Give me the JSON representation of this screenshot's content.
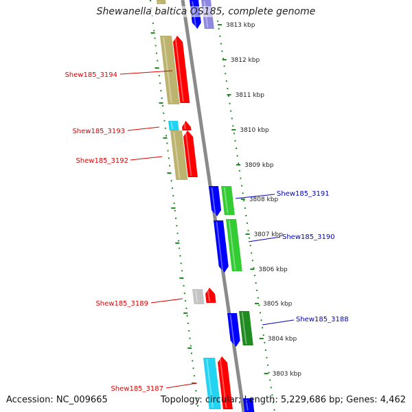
{
  "title": "Shewanella baltica OS185, complete genome",
  "accession_text": "Accession: NC_009665",
  "summary_text": "Topology: circular; Length: 5,229,686 bp; Genes: 4,462",
  "colors": {
    "backbone": "#8a8a8a",
    "ruler": "#1f8a1f",
    "reverse_label": "#dd0000",
    "forward_label": "#0000bb",
    "tan": "#bcb36e",
    "red": "#ff0000",
    "cyan": "#22d4f2",
    "blue": "#0000ff",
    "green": "#33cc33",
    "darkgreen": "#1f8a1f",
    "gray": "#c4c4c4",
    "lavender": "#8f88e0"
  },
  "ticks": [
    "3813 kbp",
    "3812 kbp",
    "3811 kbp",
    "3810 kbp",
    "3809 kbp",
    "3808 kbp",
    "3807 kbp",
    "3806 kbp",
    "3805 kbp",
    "3804 kbp",
    "3803 kbp"
  ],
  "gene_labels": [
    {
      "text": "Shew185_3194",
      "strand": "reverse"
    },
    {
      "text": "Shew185_3193",
      "strand": "reverse"
    },
    {
      "text": "Shew185_3192",
      "strand": "reverse"
    },
    {
      "text": "Shew185_3191",
      "strand": "forward"
    },
    {
      "text": "Shew185_3190",
      "strand": "forward"
    },
    {
      "text": "Shew185_3189",
      "strand": "reverse"
    },
    {
      "text": "Shew185_3188",
      "strand": "forward"
    },
    {
      "text": "Shew185_3187",
      "strand": "reverse"
    }
  ]
}
